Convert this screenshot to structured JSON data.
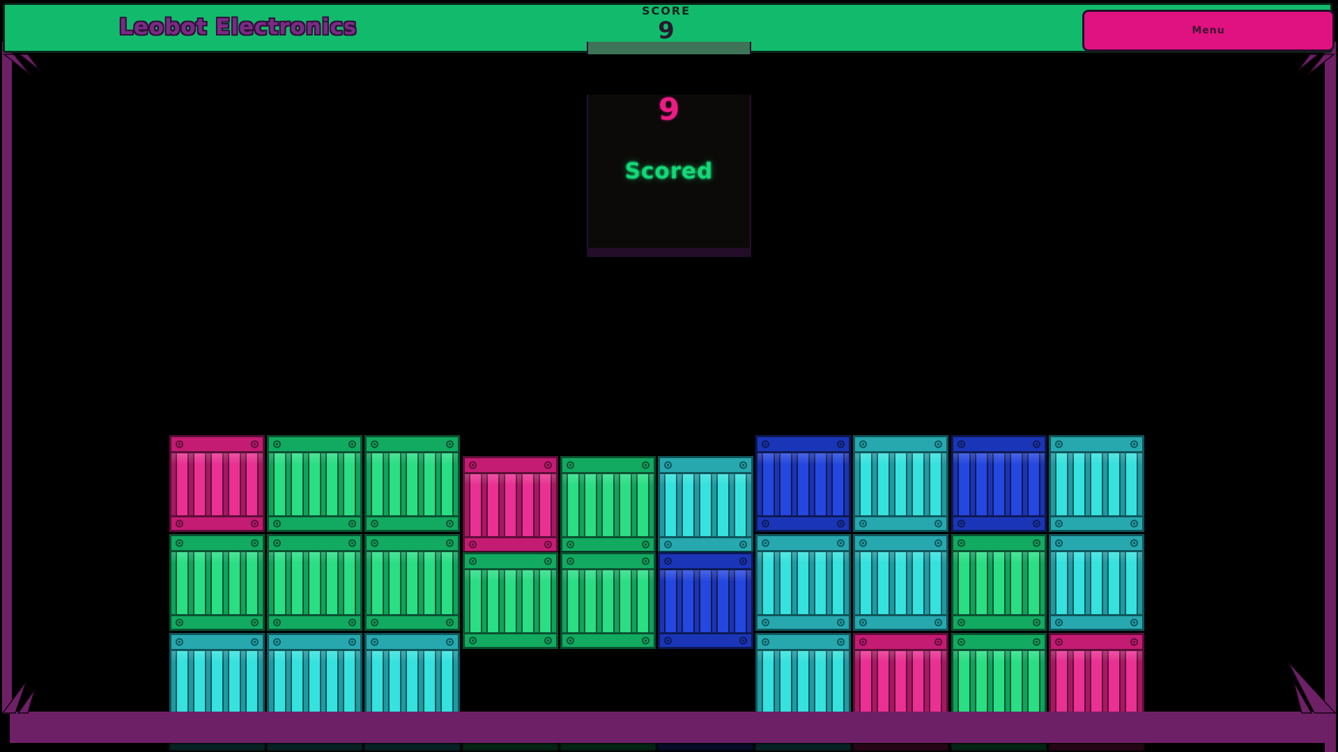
{
  "header": {
    "title": "Leobot Electronics",
    "score_label": "SCORE",
    "score_value": "9",
    "menu_label": "Menu"
  },
  "popup": {
    "score": "9",
    "caption": "Scored"
  },
  "colors": {
    "header_green": "#12bb6c",
    "frame_purple": "#6e2066",
    "menu_pink": "#e01180",
    "title_purple": "#7a2c85",
    "popup_score_pink": "#ea1d82",
    "popup_caption_green": "#15d877",
    "crates": {
      "pink": {
        "plank": "#c41b73",
        "base": "#a61961",
        "slat": "#ea3092",
        "line": "#5c0e38"
      },
      "green": {
        "plank": "#12aa60",
        "base": "#0fa35c",
        "slat": "#2ade84",
        "line": "#0a5131"
      },
      "teal": {
        "plank": "#26a8ae",
        "base": "#2199a1",
        "slat": "#35e2dd",
        "line": "#0e565c"
      },
      "blue": {
        "plank": "#1b35b8",
        "base": "#1c33b2",
        "slat": "#2447e0",
        "line": "#0c1a54"
      }
    }
  },
  "board": {
    "columns": 10,
    "rows": 3,
    "grid": [
      {
        "row": 0,
        "col": 0,
        "color": "pink"
      },
      {
        "row": 0,
        "col": 1,
        "color": "green"
      },
      {
        "row": 0,
        "col": 2,
        "color": "green"
      },
      {
        "row": 0,
        "col": 6,
        "color": "blue"
      },
      {
        "row": 0,
        "col": 7,
        "color": "teal"
      },
      {
        "row": 0,
        "col": 8,
        "color": "blue"
      },
      {
        "row": 0,
        "col": 9,
        "color": "teal"
      },
      {
        "row": 1,
        "col": 0,
        "color": "green"
      },
      {
        "row": 1,
        "col": 1,
        "color": "green"
      },
      {
        "row": 1,
        "col": 2,
        "color": "green"
      },
      {
        "row": 1,
        "col": 6,
        "color": "teal"
      },
      {
        "row": 1,
        "col": 7,
        "color": "teal"
      },
      {
        "row": 1,
        "col": 8,
        "color": "green"
      },
      {
        "row": 1,
        "col": 9,
        "color": "teal"
      },
      {
        "row": 2,
        "col": 0,
        "color": "teal"
      },
      {
        "row": 2,
        "col": 1,
        "color": "teal"
      },
      {
        "row": 2,
        "col": 2,
        "color": "teal"
      },
      {
        "row": 2,
        "col": 6,
        "color": "teal"
      },
      {
        "row": 2,
        "col": 7,
        "color": "pink"
      },
      {
        "row": 2,
        "col": 8,
        "color": "green"
      },
      {
        "row": 2,
        "col": 9,
        "color": "pink"
      }
    ],
    "falling_piece": [
      {
        "row": 0,
        "col": 3,
        "color": "pink"
      },
      {
        "row": 0,
        "col": 4,
        "color": "green"
      },
      {
        "row": 0,
        "col": 5,
        "color": "teal"
      },
      {
        "row": 1,
        "col": 3,
        "color": "green"
      },
      {
        "row": 1,
        "col": 4,
        "color": "green"
      },
      {
        "row": 1,
        "col": 5,
        "color": "blue"
      }
    ],
    "reflections": [
      {
        "col": 0,
        "color": "teal"
      },
      {
        "col": 1,
        "color": "teal"
      },
      {
        "col": 2,
        "color": "teal"
      },
      {
        "col": 3,
        "color": "green"
      },
      {
        "col": 4,
        "color": "green"
      },
      {
        "col": 5,
        "color": "blue"
      },
      {
        "col": 6,
        "color": "teal"
      },
      {
        "col": 7,
        "color": "pink"
      },
      {
        "col": 8,
        "color": "green"
      },
      {
        "col": 9,
        "color": "pink"
      }
    ]
  }
}
